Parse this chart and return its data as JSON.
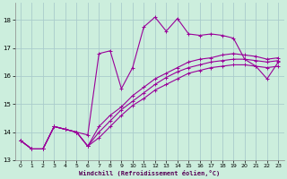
{
  "xlabel": "Windchill (Refroidissement éolien,°C)",
  "bg_color": "#cceedd",
  "grid_color": "#aacccc",
  "line_color": "#990099",
  "xlim": [
    -0.5,
    23.5
  ],
  "ylim": [
    13.0,
    18.6
  ],
  "yticks": [
    13,
    14,
    15,
    16,
    17,
    18
  ],
  "xticks": [
    0,
    1,
    2,
    3,
    4,
    5,
    6,
    7,
    8,
    9,
    10,
    11,
    12,
    13,
    14,
    15,
    16,
    17,
    18,
    19,
    20,
    21,
    22,
    23
  ],
  "series": [
    [
      13.7,
      13.4,
      13.4,
      14.2,
      14.1,
      14.0,
      13.9,
      16.8,
      16.9,
      15.55,
      16.3,
      17.75,
      18.1,
      17.6,
      18.05,
      17.5,
      17.45,
      17.5,
      17.45,
      17.35,
      16.6,
      16.35,
      15.9,
      16.5
    ],
    [
      13.7,
      13.4,
      13.4,
      14.2,
      14.1,
      14.0,
      13.5,
      14.2,
      14.6,
      14.9,
      15.3,
      15.6,
      15.9,
      16.1,
      16.3,
      16.5,
      16.6,
      16.65,
      16.75,
      16.8,
      16.75,
      16.7,
      16.6,
      16.65
    ],
    [
      13.7,
      13.4,
      13.4,
      14.2,
      14.1,
      14.0,
      13.5,
      14.0,
      14.4,
      14.8,
      15.1,
      15.4,
      15.7,
      15.95,
      16.15,
      16.3,
      16.4,
      16.5,
      16.55,
      16.6,
      16.6,
      16.55,
      16.5,
      16.55
    ],
    [
      13.7,
      13.4,
      13.4,
      14.2,
      14.1,
      14.0,
      13.5,
      13.8,
      14.2,
      14.6,
      14.95,
      15.2,
      15.5,
      15.7,
      15.9,
      16.1,
      16.2,
      16.3,
      16.35,
      16.4,
      16.4,
      16.35,
      16.3,
      16.35
    ]
  ]
}
